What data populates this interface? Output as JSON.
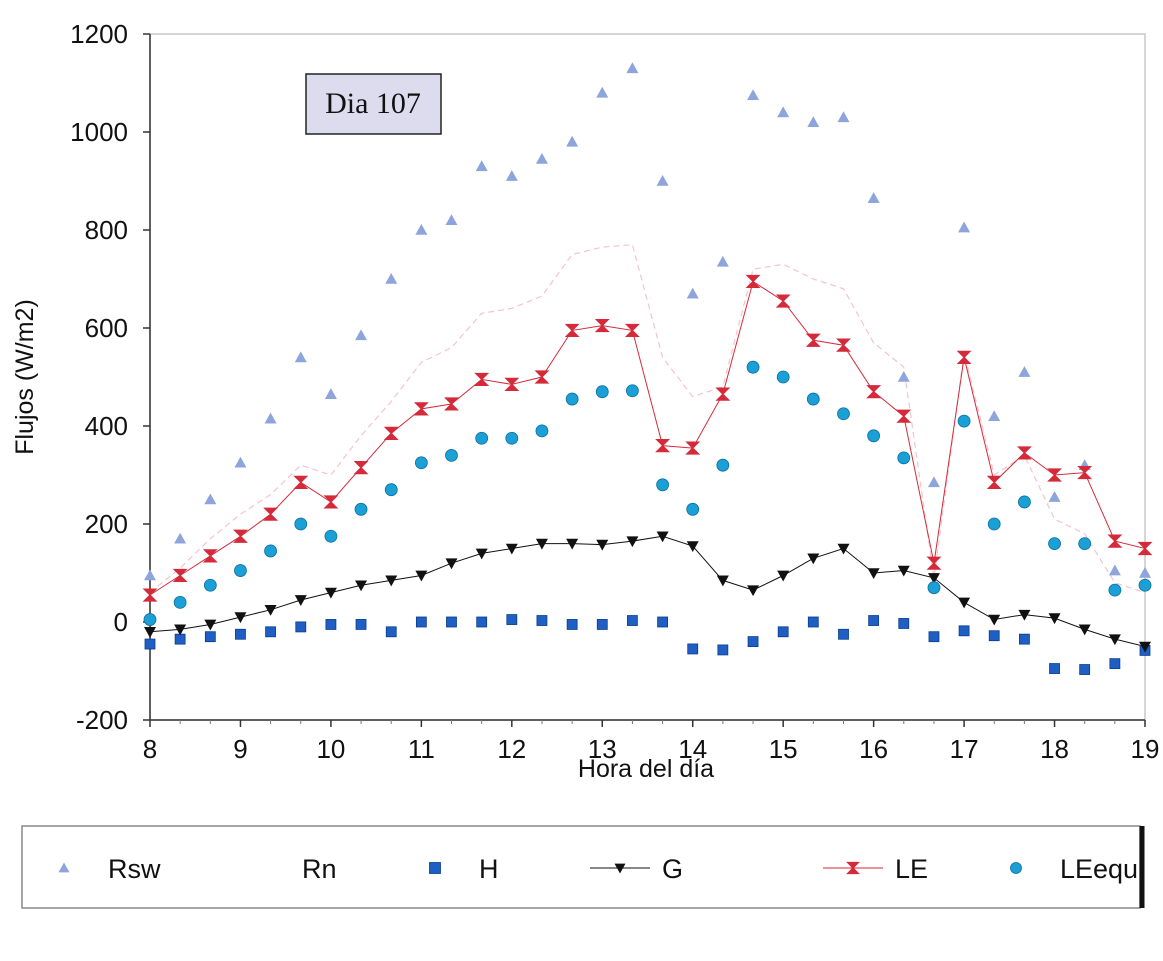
{
  "chart_data": {
    "type": "scatter",
    "annotation": "Dia 107",
    "xlabel": "Hora del día",
    "ylabel": "Flujos (W/m2)",
    "xlim": [
      8,
      19
    ],
    "ylim": [
      -200,
      1200
    ],
    "xticks": [
      "8",
      "9",
      "10",
      "11",
      "12",
      "13",
      "14",
      "15",
      "16",
      "17",
      "18",
      "19"
    ],
    "yticks": [
      "-200",
      "0",
      "200",
      "400",
      "600",
      "800",
      "1000",
      "1200"
    ],
    "grid": false,
    "legend_position": "bottom",
    "x": [
      8,
      8.333,
      8.667,
      9,
      9.333,
      9.667,
      10,
      10.333,
      10.667,
      11,
      11.333,
      11.667,
      12,
      12.333,
      12.667,
      13,
      13.333,
      13.667,
      14,
      14.333,
      14.667,
      15,
      15.333,
      15.667,
      16,
      16.333,
      16.667,
      17,
      17.333,
      17.667,
      18,
      18.333,
      18.667,
      19
    ],
    "series": [
      {
        "name": "Rsw",
        "marker": "triangle",
        "color": "#8ea4dc",
        "line": false,
        "values": [
          95,
          170,
          250,
          325,
          415,
          540,
          465,
          585,
          700,
          800,
          820,
          930,
          910,
          945,
          980,
          1080,
          1130,
          900,
          670,
          735,
          1075,
          1040,
          1020,
          1030,
          865,
          500,
          285,
          805,
          420,
          510,
          255,
          320,
          105,
          100
        ]
      },
      {
        "name": "Rn",
        "marker": "none",
        "color": "#f2c4cc",
        "line": true,
        "values": [
          60,
          110,
          170,
          220,
          260,
          320,
          300,
          380,
          450,
          530,
          560,
          630,
          640,
          665,
          750,
          765,
          770,
          540,
          460,
          480,
          720,
          730,
          700,
          680,
          570,
          520,
          90,
          550,
          300,
          340,
          210,
          180,
          80,
          60
        ]
      },
      {
        "name": "H",
        "marker": "square",
        "color": "#1f5fc4",
        "line": false,
        "values": [
          -45,
          -35,
          -30,
          -25,
          -20,
          -10,
          -5,
          -5,
          -20,
          0,
          0,
          0,
          5,
          3,
          -5,
          -5,
          3,
          0,
          -55,
          -57,
          -40,
          -20,
          0,
          -25,
          3,
          -3,
          -30,
          -18,
          -28,
          -35,
          -95,
          -97,
          -85,
          -58
        ]
      },
      {
        "name": "G",
        "marker": "triangle-down",
        "color": "#111111",
        "line": true,
        "values": [
          -20,
          -15,
          -5,
          10,
          25,
          45,
          60,
          75,
          85,
          95,
          120,
          140,
          150,
          160,
          160,
          158,
          165,
          175,
          155,
          85,
          65,
          95,
          130,
          150,
          100,
          105,
          90,
          40,
          5,
          15,
          8,
          -15,
          -35,
          -50
        ]
      },
      {
        "name": "LE",
        "marker": "hourglass",
        "color": "#d42a3a",
        "line": true,
        "values": [
          55,
          95,
          135,
          175,
          220,
          285,
          245,
          315,
          385,
          435,
          445,
          495,
          485,
          500,
          595,
          605,
          595,
          360,
          355,
          465,
          695,
          655,
          575,
          565,
          470,
          420,
          120,
          540,
          285,
          345,
          300,
          305,
          165,
          150
        ]
      },
      {
        "name": "LEequ",
        "marker": "circle",
        "color": "#1a9fd6",
        "line": false,
        "values": [
          5,
          40,
          75,
          105,
          145,
          200,
          175,
          230,
          270,
          325,
          340,
          375,
          375,
          390,
          455,
          470,
          472,
          280,
          230,
          320,
          520,
          500,
          455,
          425,
          380,
          335,
          70,
          410,
          200,
          245,
          160,
          160,
          65,
          75
        ]
      }
    ]
  }
}
